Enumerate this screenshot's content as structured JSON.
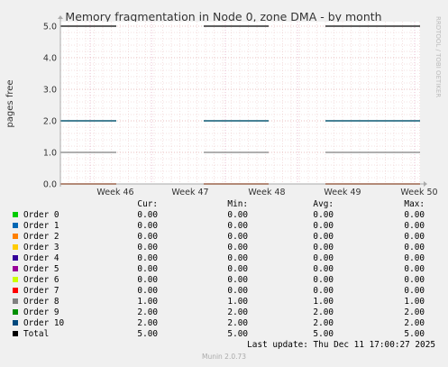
{
  "chart_data": {
    "type": "line",
    "title": "Memory fragmentation in Node 0, zone DMA - by month",
    "ylabel": "pages free",
    "watermark": "RRDTOOL / TOBI OETIKER",
    "ylim": [
      0,
      5
    ],
    "yticks": [
      "0.0",
      "1.0",
      "2.0",
      "3.0",
      "4.0",
      "5.0"
    ],
    "x_ticks": [
      "Week 46",
      "Week 47",
      "Week 48",
      "Week 49",
      "Week 50"
    ],
    "grid": true,
    "legend_placement": "below",
    "segments_note_x": "data present in three time windows",
    "series": [
      {
        "name": "Order 0",
        "color": "#00cc00",
        "cur": "0.00",
        "min": "0.00",
        "avg": "0.00",
        "max": "0.00",
        "value": 0
      },
      {
        "name": "Order 1",
        "color": "#0066b3",
        "cur": "0.00",
        "min": "0.00",
        "avg": "0.00",
        "max": "0.00",
        "value": 0
      },
      {
        "name": "Order 2",
        "color": "#ff8000",
        "cur": "0.00",
        "min": "0.00",
        "avg": "0.00",
        "max": "0.00",
        "value": 0
      },
      {
        "name": "Order 3",
        "color": "#ffcc00",
        "cur": "0.00",
        "min": "0.00",
        "avg": "0.00",
        "max": "0.00",
        "value": 0
      },
      {
        "name": "Order 4",
        "color": "#330099",
        "cur": "0.00",
        "min": "0.00",
        "avg": "0.00",
        "max": "0.00",
        "value": 0
      },
      {
        "name": "Order 5",
        "color": "#990099",
        "cur": "0.00",
        "min": "0.00",
        "avg": "0.00",
        "max": "0.00",
        "value": 0
      },
      {
        "name": "Order 6",
        "color": "#ccff00",
        "cur": "0.00",
        "min": "0.00",
        "avg": "0.00",
        "max": "0.00",
        "value": 0
      },
      {
        "name": "Order 7",
        "color": "#ff0000",
        "cur": "0.00",
        "min": "0.00",
        "avg": "0.00",
        "max": "0.00",
        "value": 0
      },
      {
        "name": "Order 8",
        "color": "#808080",
        "cur": "1.00",
        "min": "1.00",
        "avg": "1.00",
        "max": "1.00",
        "value": 1
      },
      {
        "name": "Order 9",
        "color": "#008f00",
        "cur": "2.00",
        "min": "2.00",
        "avg": "2.00",
        "max": "2.00",
        "value": 2
      },
      {
        "name": "Order 10",
        "color": "#00487d",
        "cur": "2.00",
        "min": "2.00",
        "avg": "2.00",
        "max": "2.00",
        "value": 2
      },
      {
        "name": "Total",
        "color": "#000000",
        "cur": "5.00",
        "min": "5.00",
        "avg": "5.00",
        "max": "5.00",
        "value": 5
      }
    ]
  },
  "legend_headers": {
    "cur": "Cur:",
    "min": "Min:",
    "avg": "Avg:",
    "max": "Max:"
  },
  "last_update": "Last update: Thu Dec 11 17:00:27 2025",
  "munin_version": "Munin 2.0.73"
}
